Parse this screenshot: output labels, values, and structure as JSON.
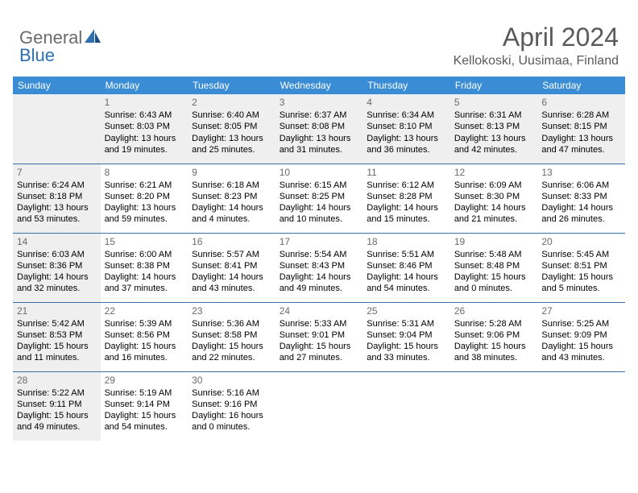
{
  "logo": {
    "general": "General",
    "blue": "Blue"
  },
  "title": "April 2024",
  "location": "Kellokoski, Uusimaa, Finland",
  "colors": {
    "header_bg": "#3a8cd4",
    "header_fg": "#ffffff",
    "row_border": "#3a6fa8",
    "shaded_bg": "#efefef",
    "title_color": "#5a5a5a",
    "logo_gray": "#6b6b6b",
    "logo_blue": "#2f6fb0"
  },
  "daynames": [
    "Sunday",
    "Monday",
    "Tuesday",
    "Wednesday",
    "Thursday",
    "Friday",
    "Saturday"
  ],
  "weeks": [
    [
      {
        "num": "",
        "shaded": true
      },
      {
        "num": "1",
        "shaded": true,
        "sunrise": "Sunrise: 6:43 AM",
        "sunset": "Sunset: 8:03 PM",
        "day1": "Daylight: 13 hours",
        "day2": "and 19 minutes."
      },
      {
        "num": "2",
        "shaded": true,
        "sunrise": "Sunrise: 6:40 AM",
        "sunset": "Sunset: 8:05 PM",
        "day1": "Daylight: 13 hours",
        "day2": "and 25 minutes."
      },
      {
        "num": "3",
        "shaded": true,
        "sunrise": "Sunrise: 6:37 AM",
        "sunset": "Sunset: 8:08 PM",
        "day1": "Daylight: 13 hours",
        "day2": "and 31 minutes."
      },
      {
        "num": "4",
        "shaded": true,
        "sunrise": "Sunrise: 6:34 AM",
        "sunset": "Sunset: 8:10 PM",
        "day1": "Daylight: 13 hours",
        "day2": "and 36 minutes."
      },
      {
        "num": "5",
        "shaded": true,
        "sunrise": "Sunrise: 6:31 AM",
        "sunset": "Sunset: 8:13 PM",
        "day1": "Daylight: 13 hours",
        "day2": "and 42 minutes."
      },
      {
        "num": "6",
        "shaded": true,
        "sunrise": "Sunrise: 6:28 AM",
        "sunset": "Sunset: 8:15 PM",
        "day1": "Daylight: 13 hours",
        "day2": "and 47 minutes."
      }
    ],
    [
      {
        "num": "7",
        "shaded": true,
        "sunrise": "Sunrise: 6:24 AM",
        "sunset": "Sunset: 8:18 PM",
        "day1": "Daylight: 13 hours",
        "day2": "and 53 minutes."
      },
      {
        "num": "8",
        "sunrise": "Sunrise: 6:21 AM",
        "sunset": "Sunset: 8:20 PM",
        "day1": "Daylight: 13 hours",
        "day2": "and 59 minutes."
      },
      {
        "num": "9",
        "sunrise": "Sunrise: 6:18 AM",
        "sunset": "Sunset: 8:23 PM",
        "day1": "Daylight: 14 hours",
        "day2": "and 4 minutes."
      },
      {
        "num": "10",
        "sunrise": "Sunrise: 6:15 AM",
        "sunset": "Sunset: 8:25 PM",
        "day1": "Daylight: 14 hours",
        "day2": "and 10 minutes."
      },
      {
        "num": "11",
        "sunrise": "Sunrise: 6:12 AM",
        "sunset": "Sunset: 8:28 PM",
        "day1": "Daylight: 14 hours",
        "day2": "and 15 minutes."
      },
      {
        "num": "12",
        "sunrise": "Sunrise: 6:09 AM",
        "sunset": "Sunset: 8:30 PM",
        "day1": "Daylight: 14 hours",
        "day2": "and 21 minutes."
      },
      {
        "num": "13",
        "sunrise": "Sunrise: 6:06 AM",
        "sunset": "Sunset: 8:33 PM",
        "day1": "Daylight: 14 hours",
        "day2": "and 26 minutes."
      }
    ],
    [
      {
        "num": "14",
        "shaded": true,
        "sunrise": "Sunrise: 6:03 AM",
        "sunset": "Sunset: 8:36 PM",
        "day1": "Daylight: 14 hours",
        "day2": "and 32 minutes."
      },
      {
        "num": "15",
        "sunrise": "Sunrise: 6:00 AM",
        "sunset": "Sunset: 8:38 PM",
        "day1": "Daylight: 14 hours",
        "day2": "and 37 minutes."
      },
      {
        "num": "16",
        "sunrise": "Sunrise: 5:57 AM",
        "sunset": "Sunset: 8:41 PM",
        "day1": "Daylight: 14 hours",
        "day2": "and 43 minutes."
      },
      {
        "num": "17",
        "sunrise": "Sunrise: 5:54 AM",
        "sunset": "Sunset: 8:43 PM",
        "day1": "Daylight: 14 hours",
        "day2": "and 49 minutes."
      },
      {
        "num": "18",
        "sunrise": "Sunrise: 5:51 AM",
        "sunset": "Sunset: 8:46 PM",
        "day1": "Daylight: 14 hours",
        "day2": "and 54 minutes."
      },
      {
        "num": "19",
        "sunrise": "Sunrise: 5:48 AM",
        "sunset": "Sunset: 8:48 PM",
        "day1": "Daylight: 15 hours",
        "day2": "and 0 minutes."
      },
      {
        "num": "20",
        "sunrise": "Sunrise: 5:45 AM",
        "sunset": "Sunset: 8:51 PM",
        "day1": "Daylight: 15 hours",
        "day2": "and 5 minutes."
      }
    ],
    [
      {
        "num": "21",
        "shaded": true,
        "sunrise": "Sunrise: 5:42 AM",
        "sunset": "Sunset: 8:53 PM",
        "day1": "Daylight: 15 hours",
        "day2": "and 11 minutes."
      },
      {
        "num": "22",
        "sunrise": "Sunrise: 5:39 AM",
        "sunset": "Sunset: 8:56 PM",
        "day1": "Daylight: 15 hours",
        "day2": "and 16 minutes."
      },
      {
        "num": "23",
        "sunrise": "Sunrise: 5:36 AM",
        "sunset": "Sunset: 8:58 PM",
        "day1": "Daylight: 15 hours",
        "day2": "and 22 minutes."
      },
      {
        "num": "24",
        "sunrise": "Sunrise: 5:33 AM",
        "sunset": "Sunset: 9:01 PM",
        "day1": "Daylight: 15 hours",
        "day2": "and 27 minutes."
      },
      {
        "num": "25",
        "sunrise": "Sunrise: 5:31 AM",
        "sunset": "Sunset: 9:04 PM",
        "day1": "Daylight: 15 hours",
        "day2": "and 33 minutes."
      },
      {
        "num": "26",
        "sunrise": "Sunrise: 5:28 AM",
        "sunset": "Sunset: 9:06 PM",
        "day1": "Daylight: 15 hours",
        "day2": "and 38 minutes."
      },
      {
        "num": "27",
        "sunrise": "Sunrise: 5:25 AM",
        "sunset": "Sunset: 9:09 PM",
        "day1": "Daylight: 15 hours",
        "day2": "and 43 minutes."
      }
    ],
    [
      {
        "num": "28",
        "shaded": true,
        "sunrise": "Sunrise: 5:22 AM",
        "sunset": "Sunset: 9:11 PM",
        "day1": "Daylight: 15 hours",
        "day2": "and 49 minutes."
      },
      {
        "num": "29",
        "sunrise": "Sunrise: 5:19 AM",
        "sunset": "Sunset: 9:14 PM",
        "day1": "Daylight: 15 hours",
        "day2": "and 54 minutes."
      },
      {
        "num": "30",
        "sunrise": "Sunrise: 5:16 AM",
        "sunset": "Sunset: 9:16 PM",
        "day1": "Daylight: 16 hours",
        "day2": "and 0 minutes."
      },
      {
        "num": ""
      },
      {
        "num": ""
      },
      {
        "num": ""
      },
      {
        "num": ""
      }
    ]
  ]
}
